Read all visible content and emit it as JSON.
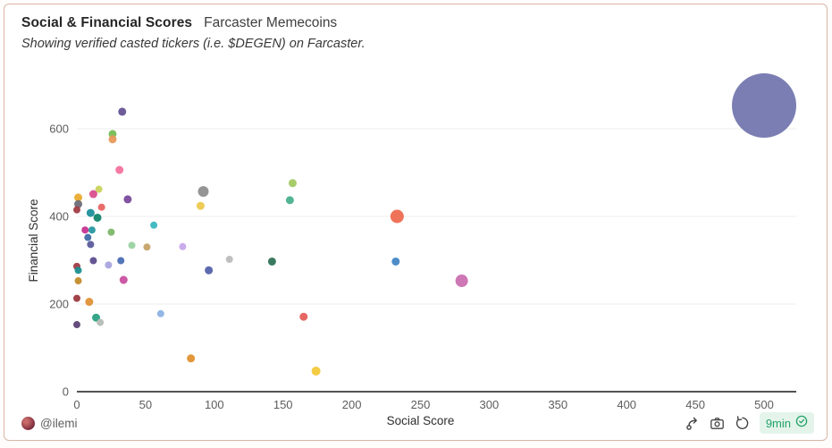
{
  "header": {
    "title": "Social & Financial Scores",
    "subtitle_tag": "Farcaster Memecoins",
    "description": "Showing verified casted tickers (i.e. $DEGEN) on Farcaster."
  },
  "footer": {
    "author": "@ilemi",
    "author_avatar_icon": "avatar-icon",
    "action_icons": [
      "fork-icon",
      "camera-icon",
      "refresh-icon"
    ],
    "refresh_badge": {
      "label": "9min",
      "icon": "verified-check-icon",
      "text_color": "#22a366",
      "bg_color": "#e4f4eb"
    }
  },
  "colors": {
    "card_border": "#d9b5a5",
    "gridline": "#ededed",
    "axis_line": "#1a1a1a",
    "tick_text": "#5c5c5c",
    "axis_title_text": "#2e2e2e"
  },
  "chart_data": {
    "type": "scatter",
    "title": "Social & Financial Scores",
    "xlabel": "Social Score",
    "ylabel": "Financial Score",
    "xlim": [
      0,
      523
    ],
    "ylim": [
      0,
      740
    ],
    "x_ticks": [
      0,
      50,
      100,
      150,
      200,
      250,
      300,
      350,
      400,
      450,
      500
    ],
    "y_ticks": [
      0,
      200,
      400,
      600
    ],
    "grid": "horizontal",
    "legend": "none",
    "points": [
      {
        "x": 33,
        "y": 639,
        "r": 4.5,
        "color": "#655394"
      },
      {
        "x": 26,
        "y": 588,
        "r": 4.5,
        "color": "#77bd57"
      },
      {
        "x": 26,
        "y": 576,
        "r": 4.5,
        "color": "#e8995b"
      },
      {
        "x": 31,
        "y": 506,
        "r": 4.5,
        "color": "#f3739f"
      },
      {
        "x": 16,
        "y": 462,
        "r": 4,
        "color": "#c9d35e"
      },
      {
        "x": 12,
        "y": 451,
        "r": 4.5,
        "color": "#d94f8d"
      },
      {
        "x": 1,
        "y": 443,
        "r": 4.5,
        "color": "#e9ab2f"
      },
      {
        "x": 1,
        "y": 428,
        "r": 4.5,
        "color": "#6e6d77"
      },
      {
        "x": 0,
        "y": 415,
        "r": 4,
        "color": "#a23c45"
      },
      {
        "x": 18,
        "y": 421,
        "r": 4,
        "color": "#e96462"
      },
      {
        "x": 10,
        "y": 408,
        "r": 4.5,
        "color": "#1d8f9b"
      },
      {
        "x": 15,
        "y": 397,
        "r": 4.5,
        "color": "#11866c"
      },
      {
        "x": 37,
        "y": 439,
        "r": 4.5,
        "color": "#7a4a9b"
      },
      {
        "x": 6,
        "y": 369,
        "r": 4,
        "color": "#c73390"
      },
      {
        "x": 11,
        "y": 369,
        "r": 4,
        "color": "#27989f"
      },
      {
        "x": 25,
        "y": 364,
        "r": 4,
        "color": "#7cb868"
      },
      {
        "x": 8,
        "y": 352,
        "r": 4,
        "color": "#3e6ca7"
      },
      {
        "x": 10,
        "y": 336,
        "r": 4,
        "color": "#5b5b9d"
      },
      {
        "x": 40,
        "y": 334,
        "r": 4,
        "color": "#99d3a0"
      },
      {
        "x": 51,
        "y": 330,
        "r": 4,
        "color": "#c5a368"
      },
      {
        "x": 56,
        "y": 380,
        "r": 4,
        "color": "#39b7bf"
      },
      {
        "x": 0,
        "y": 286,
        "r": 4,
        "color": "#a23c45"
      },
      {
        "x": 1,
        "y": 277,
        "r": 4,
        "color": "#1b8f90"
      },
      {
        "x": 12,
        "y": 299,
        "r": 4,
        "color": "#5d4c8e"
      },
      {
        "x": 23,
        "y": 289,
        "r": 4,
        "color": "#a9a5e0"
      },
      {
        "x": 32,
        "y": 299,
        "r": 4,
        "color": "#4b6eb4"
      },
      {
        "x": 1,
        "y": 253,
        "r": 4,
        "color": "#c28c2b"
      },
      {
        "x": 34,
        "y": 255,
        "r": 4.5,
        "color": "#c850a0"
      },
      {
        "x": 0,
        "y": 213,
        "r": 4,
        "color": "#9c3a40"
      },
      {
        "x": 9,
        "y": 205,
        "r": 4.5,
        "color": "#e29136"
      },
      {
        "x": 14,
        "y": 169,
        "r": 4.5,
        "color": "#2ba183"
      },
      {
        "x": 17,
        "y": 158,
        "r": 4,
        "color": "#b7bcb7"
      },
      {
        "x": 0,
        "y": 153,
        "r": 4,
        "color": "#5d4377"
      },
      {
        "x": 61,
        "y": 178,
        "r": 4,
        "color": "#8db2e3"
      },
      {
        "x": 77,
        "y": 331,
        "r": 4,
        "color": "#c7a8e9"
      },
      {
        "x": 83,
        "y": 76,
        "r": 4.5,
        "color": "#e0912f"
      },
      {
        "x": 92,
        "y": 457,
        "r": 6,
        "color": "#8f8f8f"
      },
      {
        "x": 90,
        "y": 424,
        "r": 4.5,
        "color": "#edc94e"
      },
      {
        "x": 96,
        "y": 277,
        "r": 4.5,
        "color": "#5562ab"
      },
      {
        "x": 111,
        "y": 302,
        "r": 4,
        "color": "#bcbcbc"
      },
      {
        "x": 142,
        "y": 297,
        "r": 4.5,
        "color": "#2e7257"
      },
      {
        "x": 157,
        "y": 476,
        "r": 4.5,
        "color": "#a2c961"
      },
      {
        "x": 155,
        "y": 437,
        "r": 4.5,
        "color": "#4ab08d"
      },
      {
        "x": 165,
        "y": 171,
        "r": 4.5,
        "color": "#e4605c"
      },
      {
        "x": 174,
        "y": 47,
        "r": 5,
        "color": "#f3c83b"
      },
      {
        "x": 233,
        "y": 400,
        "r": 7.5,
        "color": "#ee6b4f"
      },
      {
        "x": 232,
        "y": 297,
        "r": 4.5,
        "color": "#4586c5"
      },
      {
        "x": 280,
        "y": 253,
        "r": 7,
        "color": "#cb70b1"
      },
      {
        "x": 500,
        "y": 653,
        "r": 36,
        "color": "#7477ae"
      }
    ]
  }
}
